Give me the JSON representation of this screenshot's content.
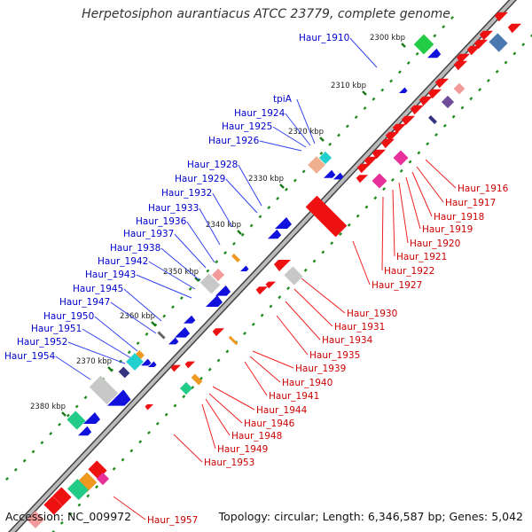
{
  "title": "Herpetosiphon aurantiacus ATCC 23779, complete genome",
  "accession_text": "Accession: NC_009972",
  "summary_text": "Topology: circular; Length: 6,346,587 bp; Genes: 5,042",
  "colors": {
    "left_labels": "#0000cc",
    "right_labels": "#cc0000",
    "backbone": "#888888",
    "marker": "#228b22"
  },
  "scale": {
    "unit": "kbp",
    "ticks": [
      "2300 kbp",
      "2310 kbp",
      "2320 kbp",
      "2330 kbp",
      "2340 kbp",
      "2350 kbp",
      "2360 kbp",
      "2370 kbp",
      "2380 kbp"
    ]
  },
  "left_labels": [
    "Haur_1910",
    "tpiA",
    "Haur_1924",
    "Haur_1925",
    "Haur_1926",
    "Haur_1928",
    "Haur_1929",
    "Haur_1932",
    "Haur_1933",
    "Haur_1936",
    "Haur_1937",
    "Haur_1938",
    "Haur_1942",
    "Haur_1943",
    "Haur_1945",
    "Haur_1947",
    "Haur_1950",
    "Haur_1951",
    "Haur_1952",
    "Haur_1954"
  ],
  "right_labels": [
    "Haur_1916",
    "Haur_1917",
    "Haur_1918",
    "Haur_1919",
    "Haur_1920",
    "Haur_1921",
    "Haur_1922",
    "Haur_1927",
    "Haur_1930",
    "Haur_1931",
    "Haur_1934",
    "Haur_1935",
    "Haur_1939",
    "Haur_1940",
    "Haur_1941",
    "Haur_1944",
    "Haur_1946",
    "Haur_1948",
    "Haur_1949",
    "Haur_1953",
    "Haur_1957"
  ]
}
